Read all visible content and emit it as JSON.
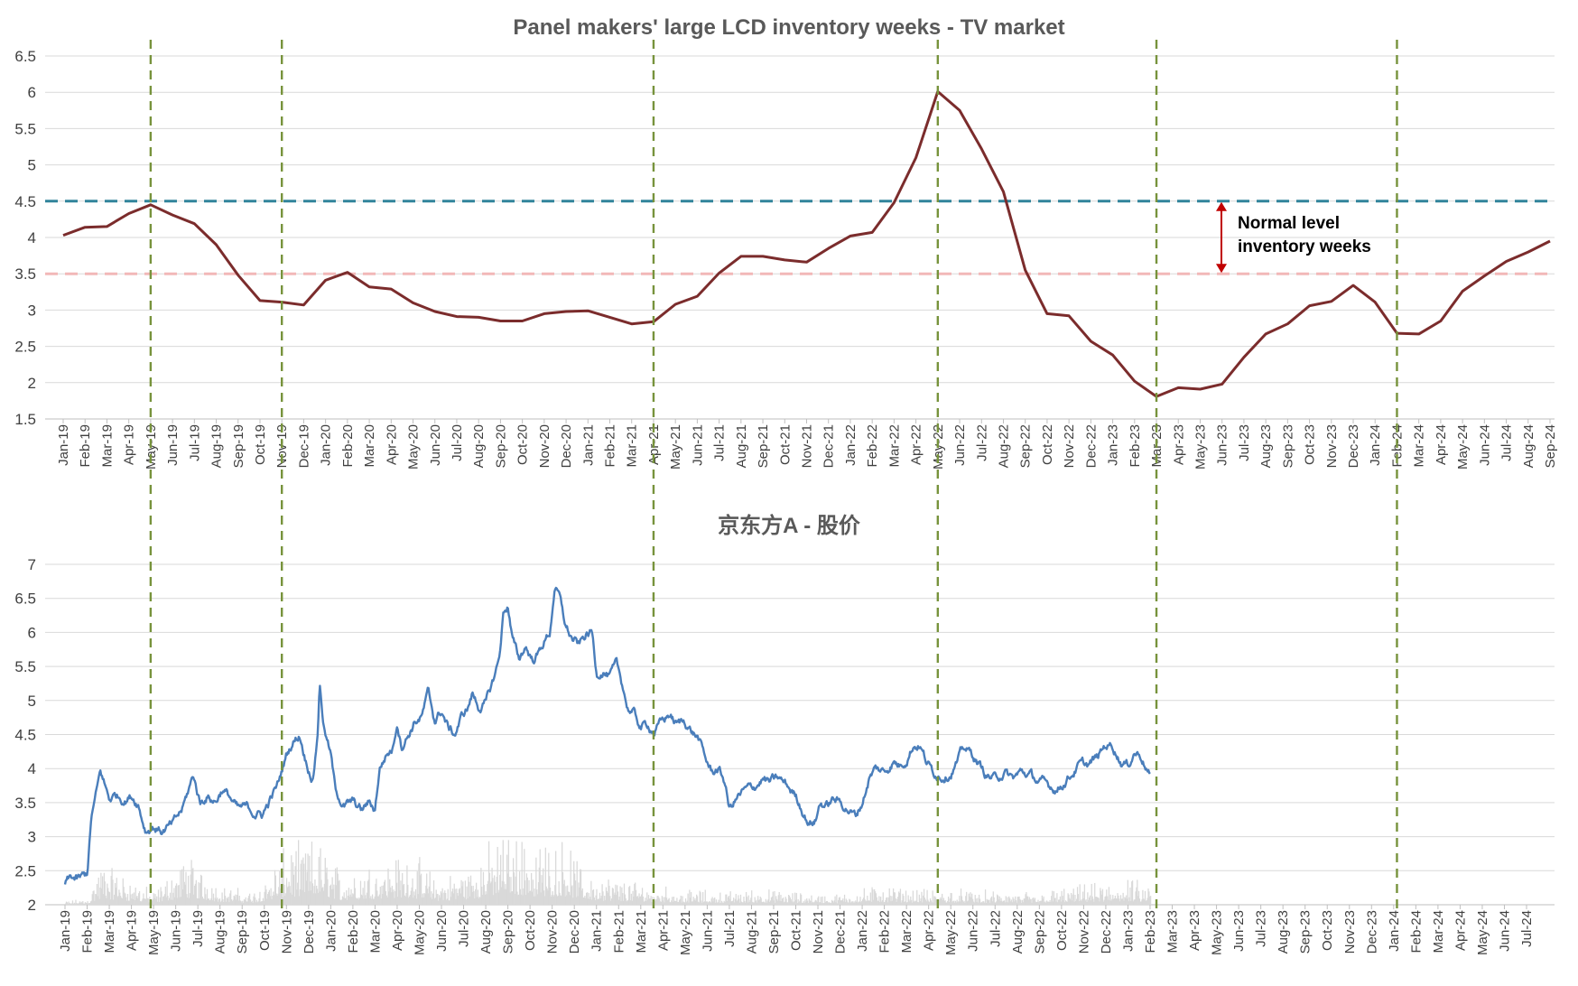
{
  "chart_data": [
    {
      "type": "line",
      "title": "Panel makers' large LCD inventory weeks  - TV market",
      "xlabel": "",
      "ylabel": "",
      "ylim": [
        1.5,
        6.5
      ],
      "yticks": [
        "1.5",
        "2",
        "2.5",
        "3",
        "3.5",
        "4",
        "4.5",
        "5",
        "5.5",
        "6",
        "6.5"
      ],
      "grid": true,
      "categories": [
        "Jan-19",
        "Feb-19",
        "Mar-19",
        "Apr-19",
        "May-19",
        "Jun-19",
        "Jul-19",
        "Aug-19",
        "Sep-19",
        "Oct-19",
        "Nov-19",
        "Dec-19",
        "Jan-20",
        "Feb-20",
        "Mar-20",
        "Apr-20",
        "May-20",
        "Jun-20",
        "Jul-20",
        "Aug-20",
        "Sep-20",
        "Oct-20",
        "Nov-20",
        "Dec-20",
        "Jan-21",
        "Feb-21",
        "Mar-21",
        "Apr-21",
        "May-21",
        "Jun-21",
        "Jul-21",
        "Aug-21",
        "Sep-21",
        "Oct-21",
        "Nov-21",
        "Dec-21",
        "Jan-22",
        "Feb-22",
        "Mar-22",
        "Apr-22",
        "May-22",
        "Jun-22",
        "Jul-22",
        "Aug-22",
        "Sep-22",
        "Oct-22",
        "Nov-22",
        "Dec-22",
        "Jan-23",
        "Feb-23",
        "Mar-23",
        "Apr-23",
        "May-23",
        "Jun-23",
        "Jul-23",
        "Aug-23",
        "Sep-23",
        "Oct-23",
        "Nov-23",
        "Dec-23",
        "Jan-24",
        "Feb-24",
        "Mar-24",
        "Apr-24",
        "May-24",
        "Jun-24",
        "Jul-24",
        "Aug-24",
        "Sep-24"
      ],
      "series": [
        {
          "color": "#7b2c2c",
          "values": [
            4.03,
            4.14,
            4.15,
            4.33,
            4.45,
            4.31,
            4.19,
            3.9,
            3.48,
            3.13,
            3.11,
            3.07,
            3.41,
            3.52,
            3.32,
            3.29,
            3.1,
            2.98,
            2.91,
            2.9,
            2.85,
            2.85,
            2.95,
            2.98,
            2.99,
            2.9,
            2.81,
            2.84,
            3.08,
            3.19,
            3.51,
            3.74,
            3.74,
            3.69,
            3.66,
            3.85,
            4.02,
            4.07,
            4.48,
            5.1,
            6.01,
            5.75,
            5.22,
            4.63,
            3.55,
            2.95,
            2.92,
            2.57,
            2.38,
            2.02,
            1.81,
            1.93,
            1.91,
            1.98,
            2.35,
            2.67,
            2.81,
            3.06,
            3.12,
            3.34,
            3.11,
            2.68,
            2.67,
            2.85,
            3.26,
            3.47,
            3.67,
            3.8,
            3.95
          ]
        }
      ],
      "reference_lines": [
        {
          "value": 4.5,
          "color": "#31849b",
          "style": "dashed"
        },
        {
          "value": 3.5,
          "color": "#f2b8b8",
          "style": "dashed"
        }
      ],
      "annotation": {
        "lines": [
          "Normal level",
          "inventory weeks"
        ],
        "from": 3.5,
        "to": 4.5,
        "arrow_color": "#c00000"
      },
      "vertical_markers": [
        "May-19",
        "Nov-19",
        "Apr-21",
        "May-22",
        "Mar-23",
        "Feb-24"
      ],
      "marker_color": "#77933c"
    },
    {
      "type": "line",
      "title": "京东方A - 股价",
      "xlabel": "",
      "ylabel": "",
      "ylim": [
        2,
        7
      ],
      "yticks": [
        "2",
        "2.5",
        "3",
        "3.5",
        "4",
        "4.5",
        "5",
        "5.5",
        "6",
        "6.5",
        "7"
      ],
      "grid": true,
      "categories": [
        "Jan-19",
        "Feb-19",
        "Mar-19",
        "Apr-19",
        "May-19",
        "Jun-19",
        "Jul-19",
        "Aug-19",
        "Sep-19",
        "Oct-19",
        "Nov-19",
        "Dec-19",
        "Jan-20",
        "Feb-20",
        "Mar-20",
        "Apr-20",
        "May-20",
        "Jun-20",
        "Jul-20",
        "Aug-20",
        "Sep-20",
        "Oct-20",
        "Nov-20",
        "Dec-20",
        "Jan-21",
        "Feb-21",
        "Mar-21",
        "Apr-21",
        "May-21",
        "Jun-21",
        "Jul-21",
        "Aug-21",
        "Sep-21",
        "Oct-21",
        "Nov-21",
        "Dec-21",
        "Jan-22",
        "Feb-22",
        "Mar-22",
        "Apr-22",
        "May-22",
        "Jun-22",
        "Jul-22",
        "Aug-22",
        "Sep-22",
        "Oct-22",
        "Nov-22",
        "Dec-22",
        "Jan-23",
        "Feb-23",
        "Mar-23",
        "Apr-23",
        "May-23",
        "Jun-23",
        "Jul-23",
        "Aug-23",
        "Sep-23",
        "Oct-23",
        "Nov-23",
        "Dec-23",
        "Jan-24",
        "Feb-24",
        "Mar-24",
        "Apr-24",
        "May-24",
        "Jun-24",
        "Jul-24"
      ],
      "price_series": {
        "color": "#4a7ebb",
        "anchors": [
          [
            0,
            2.32
          ],
          [
            0.3,
            2.4
          ],
          [
            0.55,
            2.36
          ],
          [
            0.9,
            2.42
          ],
          [
            1.0,
            2.45
          ],
          [
            1.2,
            3.3
          ],
          [
            1.4,
            3.6
          ],
          [
            1.6,
            3.95
          ],
          [
            1.75,
            3.8
          ],
          [
            2.0,
            3.55
          ],
          [
            2.3,
            3.62
          ],
          [
            2.7,
            3.55
          ],
          [
            3.0,
            3.6
          ],
          [
            3.3,
            3.5
          ],
          [
            3.5,
            3.25
          ],
          [
            3.65,
            3.1
          ],
          [
            4.0,
            3.15
          ],
          [
            4.4,
            3.08
          ],
          [
            4.9,
            3.18
          ],
          [
            5.3,
            3.4
          ],
          [
            5.6,
            3.7
          ],
          [
            5.8,
            3.9
          ],
          [
            6.1,
            3.5
          ],
          [
            6.4,
            3.6
          ],
          [
            6.8,
            3.52
          ],
          [
            7.1,
            3.7
          ],
          [
            7.4,
            3.6
          ],
          [
            7.8,
            3.4
          ],
          [
            8.2,
            3.42
          ],
          [
            8.6,
            3.35
          ],
          [
            8.9,
            3.32
          ],
          [
            9.2,
            3.5
          ],
          [
            9.6,
            3.75
          ],
          [
            10.0,
            4.2
          ],
          [
            10.3,
            4.4
          ],
          [
            10.6,
            4.5
          ],
          [
            10.9,
            4.1
          ],
          [
            11.2,
            3.85
          ],
          [
            11.4,
            4.5
          ],
          [
            11.5,
            5.25
          ],
          [
            11.7,
            4.6
          ],
          [
            12.0,
            4.2
          ],
          [
            12.2,
            3.7
          ],
          [
            12.6,
            3.45
          ],
          [
            13.0,
            3.5
          ],
          [
            13.4,
            3.38
          ],
          [
            13.7,
            3.5
          ],
          [
            14.0,
            3.4
          ],
          [
            14.2,
            4.0
          ],
          [
            14.5,
            4.2
          ],
          [
            14.8,
            4.3
          ],
          [
            15.0,
            4.7
          ],
          [
            15.2,
            4.35
          ],
          [
            15.5,
            4.5
          ],
          [
            15.8,
            4.7
          ],
          [
            16.1,
            4.75
          ],
          [
            16.4,
            5.1
          ],
          [
            16.7,
            4.7
          ],
          [
            17.0,
            4.85
          ],
          [
            17.3,
            4.6
          ],
          [
            17.6,
            4.5
          ],
          [
            17.9,
            4.75
          ],
          [
            18.2,
            4.9
          ],
          [
            18.4,
            5.1
          ],
          [
            18.7,
            4.9
          ],
          [
            19.0,
            4.95
          ],
          [
            19.3,
            5.25
          ],
          [
            19.6,
            5.6
          ],
          [
            19.8,
            6.3
          ],
          [
            20.0,
            6.4
          ],
          [
            20.2,
            5.9
          ],
          [
            20.5,
            5.6
          ],
          [
            20.8,
            5.8
          ],
          [
            21.1,
            5.6
          ],
          [
            21.4,
            5.7
          ],
          [
            21.6,
            5.85
          ],
          [
            21.9,
            6.0
          ],
          [
            22.1,
            6.65
          ],
          [
            22.3,
            6.55
          ],
          [
            22.6,
            6.1
          ],
          [
            22.9,
            5.9
          ],
          [
            23.2,
            5.8
          ],
          [
            23.5,
            5.95
          ],
          [
            23.8,
            6.0
          ],
          [
            24.0,
            5.4
          ],
          [
            24.3,
            5.45
          ],
          [
            24.6,
            5.35
          ],
          [
            24.9,
            5.5
          ],
          [
            25.2,
            5.2
          ],
          [
            25.4,
            4.9
          ],
          [
            25.7,
            4.8
          ],
          [
            26.0,
            4.6
          ],
          [
            26.3,
            4.65
          ],
          [
            26.6,
            4.55
          ],
          [
            27.0,
            4.7
          ],
          [
            27.3,
            4.8
          ],
          [
            27.6,
            4.65
          ],
          [
            28.0,
            4.7
          ],
          [
            28.3,
            4.55
          ],
          [
            28.6,
            4.45
          ],
          [
            28.9,
            4.15
          ],
          [
            29.2,
            3.95
          ],
          [
            29.5,
            4.0
          ],
          [
            29.8,
            3.8
          ],
          [
            30.0,
            3.4
          ],
          [
            30.3,
            3.55
          ],
          [
            30.6,
            3.65
          ],
          [
            30.9,
            3.7
          ],
          [
            31.2,
            3.75
          ],
          [
            31.5,
            3.85
          ],
          [
            31.8,
            3.8
          ],
          [
            32.2,
            3.85
          ],
          [
            32.6,
            3.75
          ],
          [
            33.0,
            3.6
          ],
          [
            33.3,
            3.4
          ],
          [
            33.6,
            3.2
          ],
          [
            33.9,
            3.25
          ],
          [
            34.1,
            3.5
          ],
          [
            34.4,
            3.45
          ],
          [
            34.7,
            3.55
          ],
          [
            35.0,
            3.5
          ],
          [
            35.4,
            3.4
          ],
          [
            35.7,
            3.3
          ],
          [
            36.0,
            3.5
          ],
          [
            36.3,
            3.85
          ],
          [
            36.6,
            4.0
          ],
          [
            37.0,
            3.95
          ],
          [
            37.4,
            4.1
          ],
          [
            37.7,
            4.05
          ],
          [
            38.0,
            4.15
          ],
          [
            38.3,
            4.35
          ],
          [
            38.6,
            4.35
          ],
          [
            38.9,
            4.1
          ],
          [
            39.2,
            3.95
          ],
          [
            39.6,
            3.9
          ],
          [
            40.0,
            3.95
          ],
          [
            40.3,
            4.1
          ],
          [
            40.6,
            4.3
          ],
          [
            41.0,
            4.2
          ],
          [
            41.3,
            4.05
          ],
          [
            41.6,
            3.9
          ],
          [
            42.0,
            3.85
          ],
          [
            42.4,
            3.95
          ],
          [
            42.8,
            3.85
          ],
          [
            43.2,
            3.95
          ],
          [
            43.6,
            3.9
          ],
          [
            44.0,
            3.8
          ],
          [
            44.4,
            3.75
          ],
          [
            44.8,
            3.7
          ],
          [
            45.1,
            3.8
          ],
          [
            45.4,
            3.9
          ],
          [
            45.8,
            4.05
          ],
          [
            46.2,
            4.05
          ],
          [
            46.6,
            4.15
          ],
          [
            47.0,
            4.35
          ],
          [
            47.3,
            4.35
          ],
          [
            47.7,
            4.1
          ],
          [
            48.0,
            4.05
          ],
          [
            48.3,
            4.25
          ],
          [
            48.6,
            4.2
          ],
          [
            48.8,
            4.05
          ],
          [
            49.0,
            3.9
          ]
        ],
        "bounds": [
          0,
          49
        ]
      },
      "volume_bars": {
        "color": "#d9d9d9",
        "segments": [
          [
            0,
            0.03
          ],
          [
            1.0,
            0.05
          ],
          [
            1.6,
            0.35
          ],
          [
            3.0,
            0.2
          ],
          [
            4.0,
            0.1
          ],
          [
            5.5,
            0.4
          ],
          [
            7.0,
            0.15
          ],
          [
            8.5,
            0.1
          ],
          [
            10.0,
            0.45
          ],
          [
            11.5,
            0.5
          ],
          [
            12.5,
            0.25
          ],
          [
            14.0,
            0.35
          ],
          [
            15.5,
            0.4
          ],
          [
            17.0,
            0.2
          ],
          [
            18.5,
            0.35
          ],
          [
            20.0,
            0.6
          ],
          [
            21.5,
            0.45
          ],
          [
            22.5,
            0.5
          ],
          [
            23.5,
            0.25
          ],
          [
            25.0,
            0.2
          ],
          [
            26.5,
            0.15
          ],
          [
            28.0,
            0.12
          ],
          [
            29.5,
            0.1
          ],
          [
            31.0,
            0.12
          ],
          [
            33.0,
            0.1
          ],
          [
            35.0,
            0.08
          ],
          [
            36.5,
            0.15
          ],
          [
            38.5,
            0.12
          ],
          [
            40.0,
            0.12
          ],
          [
            42.0,
            0.1
          ],
          [
            44.0,
            0.1
          ],
          [
            46.0,
            0.15
          ],
          [
            48.0,
            0.2
          ],
          [
            49.0,
            0.15
          ]
        ]
      },
      "vertical_markers": [
        "May-19",
        "Nov-19",
        "Apr-21",
        "May-22",
        "Mar-23",
        "Feb-24"
      ],
      "marker_color": "#77933c"
    }
  ]
}
